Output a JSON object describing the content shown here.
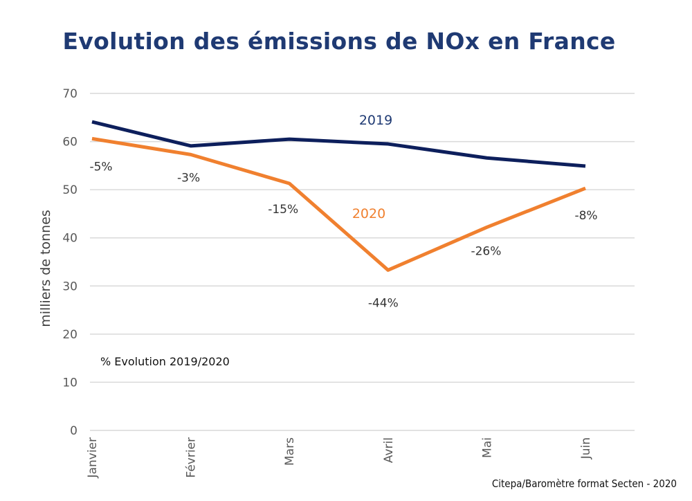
{
  "chart_data": {
    "type": "line",
    "title": "Evolution des émissions de NOx en France",
    "ylabel": "milliers de tonnes",
    "xlabel": "",
    "ylim": [
      0,
      70
    ],
    "yticks": [
      "0",
      "10",
      "20",
      "30",
      "40",
      "50",
      "60",
      "70"
    ],
    "grid": true,
    "categories": [
      "Janvier",
      "Février",
      "Mars",
      "Avril",
      "Mai",
      "Juin"
    ],
    "series": [
      {
        "name": "2019",
        "color": "#0d1f5c",
        "values": [
          64.1,
          59.1,
          60.5,
          59.5,
          56.6,
          54.9
        ]
      },
      {
        "name": "2020",
        "color": "#f0802f",
        "values": [
          60.6,
          57.3,
          51.3,
          33.3,
          42.2,
          50.3
        ]
      }
    ],
    "annotation_title": "% Evolution 2019/2020",
    "annotations": [
      "-5%",
      "-3%",
      "-15%",
      "-44%",
      "-26%",
      "-8%"
    ]
  },
  "source": "Citepa/Baromètre format Secten - 2020"
}
